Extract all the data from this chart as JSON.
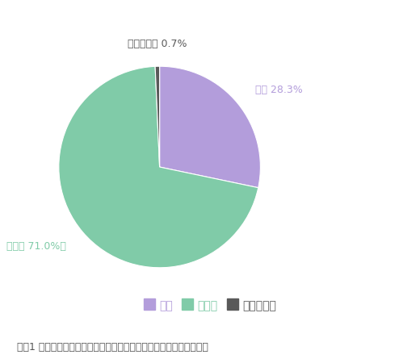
{
  "labels": [
    "はい",
    "いいえ",
    "わからない"
  ],
  "values": [
    28.3,
    71.0,
    0.7
  ],
  "colors": [
    "#b39ddb",
    "#80cba8",
    "#595959"
  ],
  "label_colors": [
    "#b39ddb",
    "#80cba8",
    "#595959"
  ],
  "pie_label_texts": [
    "はい 28.3%",
    "いいえ 71.0%～",
    "わからない 0.7%"
  ],
  "legend_labels": [
    "はい",
    "いいえ",
    "わからない"
  ],
  "question_text": "質問1 キャッシング（カードローン）を利用したことがありますか？",
  "background_color": "#ffffff",
  "startangle": 90,
  "label_fontsize": 9,
  "legend_fontsize": 10,
  "question_fontsize": 9
}
